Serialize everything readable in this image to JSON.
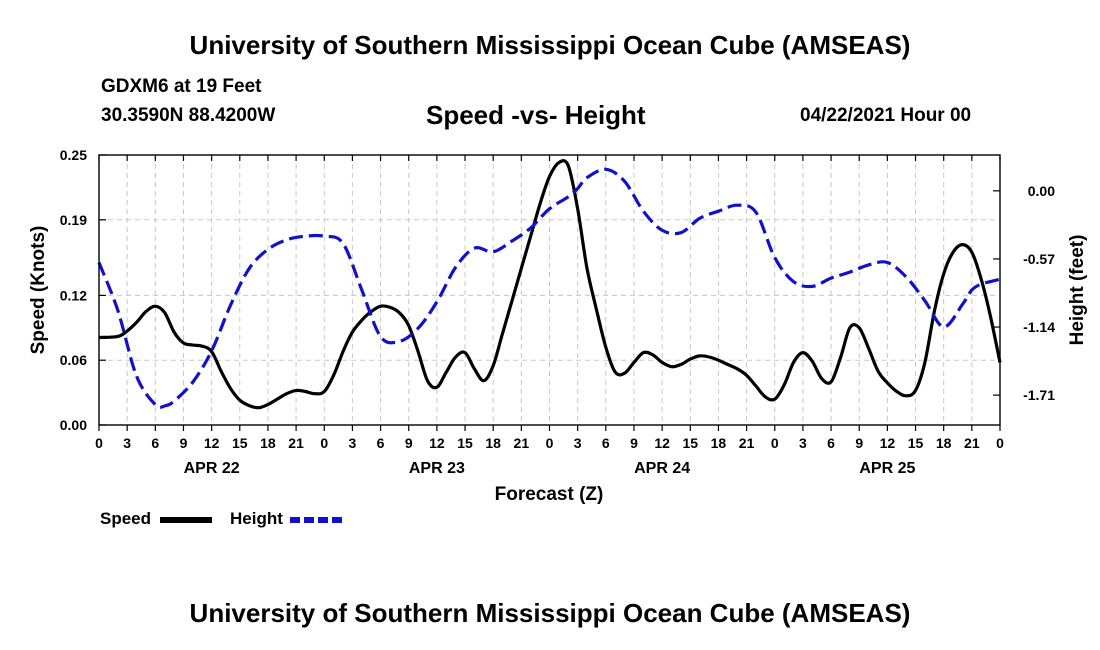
{
  "header": {
    "title": "University of Southern Mississippi Ocean Cube (AMSEAS)",
    "station": "GDXM6 at 19 Feet",
    "coordinates": "30.3590N  88.4200W",
    "subtitle": "Speed -vs- Height",
    "timestamp": "04/22/2021 Hour 00"
  },
  "footer": {
    "title": "University of Southern Mississippi Ocean Cube (AMSEAS)"
  },
  "colors": {
    "speed": "#000000",
    "height": "#1111cc",
    "grid": "#c8c8c8",
    "axis": "#000000"
  },
  "chart_data": {
    "type": "line",
    "title": "Speed -vs- Height",
    "xlabel": "Forecast (Z)",
    "ylabel": "Speed (Knots)",
    "y2label": "Height (feet)",
    "x_unit": "hours since 04/22/2021 00Z",
    "xlim": [
      0,
      96
    ],
    "ylim": [
      0,
      0.25
    ],
    "y2lim": [
      -1.96,
      0.3
    ],
    "grid": true,
    "x_tick_hours": [
      0,
      3,
      6,
      9,
      12,
      15,
      18,
      21,
      24,
      27,
      30,
      33,
      36,
      39,
      42,
      45,
      48,
      51,
      54,
      57,
      60,
      63,
      66,
      69,
      72,
      75,
      78,
      81,
      84,
      87,
      90,
      93,
      96
    ],
    "x_tick_labels": [
      "0",
      "3",
      "6",
      "9",
      "12",
      "15",
      "18",
      "21",
      "0",
      "3",
      "6",
      "9",
      "12",
      "15",
      "18",
      "21",
      "0",
      "3",
      "6",
      "9",
      "12",
      "15",
      "18",
      "21",
      "0",
      "3",
      "6",
      "9",
      "12",
      "15",
      "18",
      "21",
      "0"
    ],
    "date_labels": [
      {
        "hour": 12,
        "label": "APR 22"
      },
      {
        "hour": 36,
        "label": "APR 23"
      },
      {
        "hour": 60,
        "label": "APR 24"
      },
      {
        "hour": 84,
        "label": "APR 25"
      }
    ],
    "y_ticks": [
      0.0,
      0.06,
      0.12,
      0.19,
      0.25
    ],
    "y_tick_labels": [
      "0.00",
      "0.06",
      "0.12",
      "0.19",
      "0.25"
    ],
    "y2_ticks": [
      0.0,
      -0.57,
      -1.14,
      -1.71
    ],
    "y2_tick_labels": [
      "0.00",
      "-0.57",
      "-1.14",
      "-1.71"
    ],
    "legend": {
      "placement": "bottom-left",
      "items": [
        {
          "label": "Speed",
          "style": "solid"
        },
        {
          "label": "Height",
          "style": "dashed"
        }
      ]
    },
    "series": [
      {
        "name": "Speed",
        "axis": "left",
        "style": "solid",
        "x": [
          0,
          2,
          3,
          4,
          5,
          6,
          7,
          8,
          9,
          10,
          11,
          12,
          13,
          14,
          15,
          16,
          17,
          18,
          19,
          20,
          21,
          22,
          23,
          24,
          25,
          26,
          27,
          28,
          29,
          30,
          31,
          32,
          33,
          34,
          35,
          36,
          37,
          38,
          39,
          40,
          41,
          42,
          43,
          44,
          45,
          46,
          47,
          48,
          49,
          50,
          51,
          52,
          53,
          54,
          55,
          56,
          57,
          58,
          59,
          60,
          61,
          62,
          63,
          64,
          65,
          66,
          67,
          68,
          69,
          70,
          71,
          72,
          73,
          74,
          75,
          76,
          77,
          78,
          79,
          80,
          81,
          82,
          83,
          84,
          85,
          86,
          87,
          88,
          89,
          90,
          91,
          92,
          93,
          94,
          95,
          96
        ],
        "values": [
          0.081,
          0.082,
          0.087,
          0.095,
          0.105,
          0.11,
          0.104,
          0.086,
          0.076,
          0.074,
          0.073,
          0.068,
          0.05,
          0.034,
          0.023,
          0.018,
          0.016,
          0.019,
          0.024,
          0.029,
          0.032,
          0.031,
          0.029,
          0.031,
          0.046,
          0.068,
          0.086,
          0.097,
          0.105,
          0.11,
          0.109,
          0.104,
          0.092,
          0.068,
          0.041,
          0.035,
          0.049,
          0.063,
          0.067,
          0.052,
          0.041,
          0.055,
          0.085,
          0.115,
          0.145,
          0.175,
          0.205,
          0.23,
          0.243,
          0.24,
          0.2,
          0.145,
          0.107,
          0.072,
          0.049,
          0.048,
          0.058,
          0.067,
          0.065,
          0.058,
          0.054,
          0.056,
          0.061,
          0.064,
          0.063,
          0.06,
          0.056,
          0.052,
          0.046,
          0.036,
          0.026,
          0.024,
          0.037,
          0.058,
          0.067,
          0.059,
          0.043,
          0.04,
          0.062,
          0.09,
          0.09,
          0.071,
          0.05,
          0.039,
          0.031,
          0.027,
          0.032,
          0.058,
          0.105,
          0.14,
          0.16,
          0.167,
          0.16,
          0.135,
          0.1,
          0.058
        ]
      },
      {
        "name": "Height",
        "axis": "right",
        "style": "dashed",
        "x": [
          0,
          2,
          4,
          6,
          7,
          8,
          10,
          12,
          14,
          16,
          18,
          20,
          22,
          24,
          26,
          28,
          30,
          32,
          34,
          36,
          38,
          40,
          42,
          44,
          46,
          48,
          50,
          51,
          52,
          54,
          56,
          58,
          60,
          62,
          64,
          66,
          68,
          70,
          72,
          74,
          76,
          78,
          80,
          82,
          84,
          86,
          88,
          90,
          92,
          93,
          94,
          95,
          96
        ],
        "values": [
          -0.6,
          -1.0,
          -1.55,
          -1.79,
          -1.8,
          -1.76,
          -1.6,
          -1.34,
          -0.96,
          -0.65,
          -0.49,
          -0.41,
          -0.38,
          -0.38,
          -0.44,
          -0.83,
          -1.22,
          -1.26,
          -1.15,
          -0.93,
          -0.64,
          -0.48,
          -0.51,
          -0.42,
          -0.31,
          -0.15,
          -0.05,
          0.02,
          0.11,
          0.18,
          0.08,
          -0.17,
          -0.33,
          -0.35,
          -0.23,
          -0.17,
          -0.12,
          -0.18,
          -0.56,
          -0.76,
          -0.8,
          -0.73,
          -0.68,
          -0.62,
          -0.6,
          -0.72,
          -0.92,
          -1.14,
          -0.95,
          -0.83,
          -0.78,
          -0.76,
          -0.74
        ]
      }
    ]
  }
}
